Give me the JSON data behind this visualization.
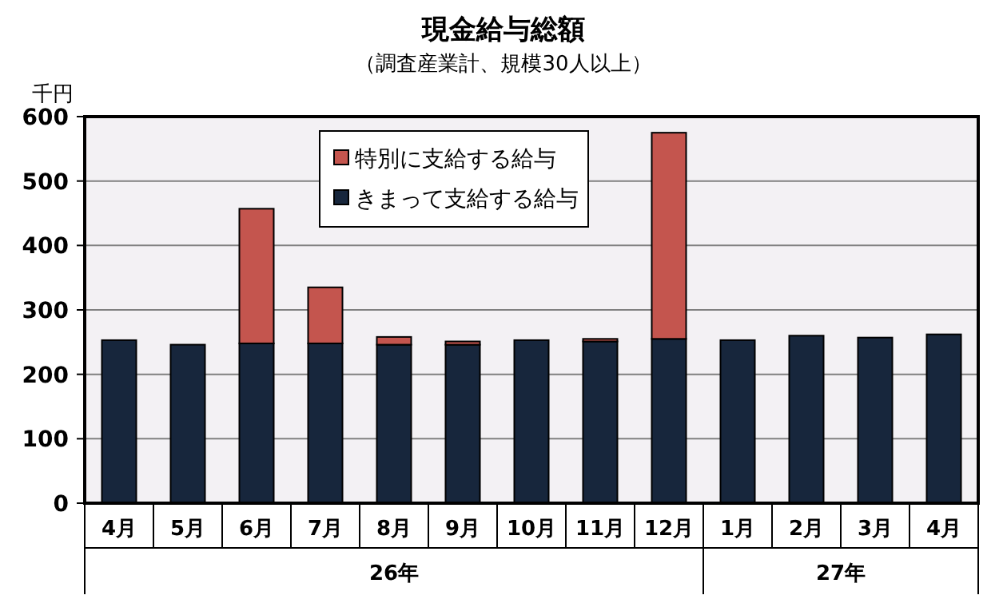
{
  "chart_data": {
    "type": "bar",
    "title": "現金給与総額",
    "subtitle": "（調査産業計、規模30人以上）",
    "ylabel": "千円",
    "categories": [
      "4月",
      "5月",
      "6月",
      "7月",
      "8月",
      "9月",
      "10月",
      "11月",
      "12月",
      "1月",
      "2月",
      "3月",
      "4月"
    ],
    "stacked": true,
    "grid": "y",
    "legend": "top",
    "ylim": [
      0,
      600
    ],
    "yticks": [
      0,
      100,
      200,
      300,
      400,
      500,
      600
    ],
    "series": [
      {
        "name": "きまって支給する給与",
        "color": "#17263c",
        "values": [
          253,
          246,
          248,
          248,
          246,
          246,
          253,
          251,
          255,
          253,
          260,
          257,
          262
        ]
      },
      {
        "name": "特別に支給する給与",
        "color": "#c4554e",
        "values": [
          null,
          null,
          209,
          87,
          12,
          5,
          null,
          4,
          320,
          null,
          null,
          null,
          null
        ]
      }
    ],
    "annotations": [
      "26年",
      "27年"
    ]
  }
}
